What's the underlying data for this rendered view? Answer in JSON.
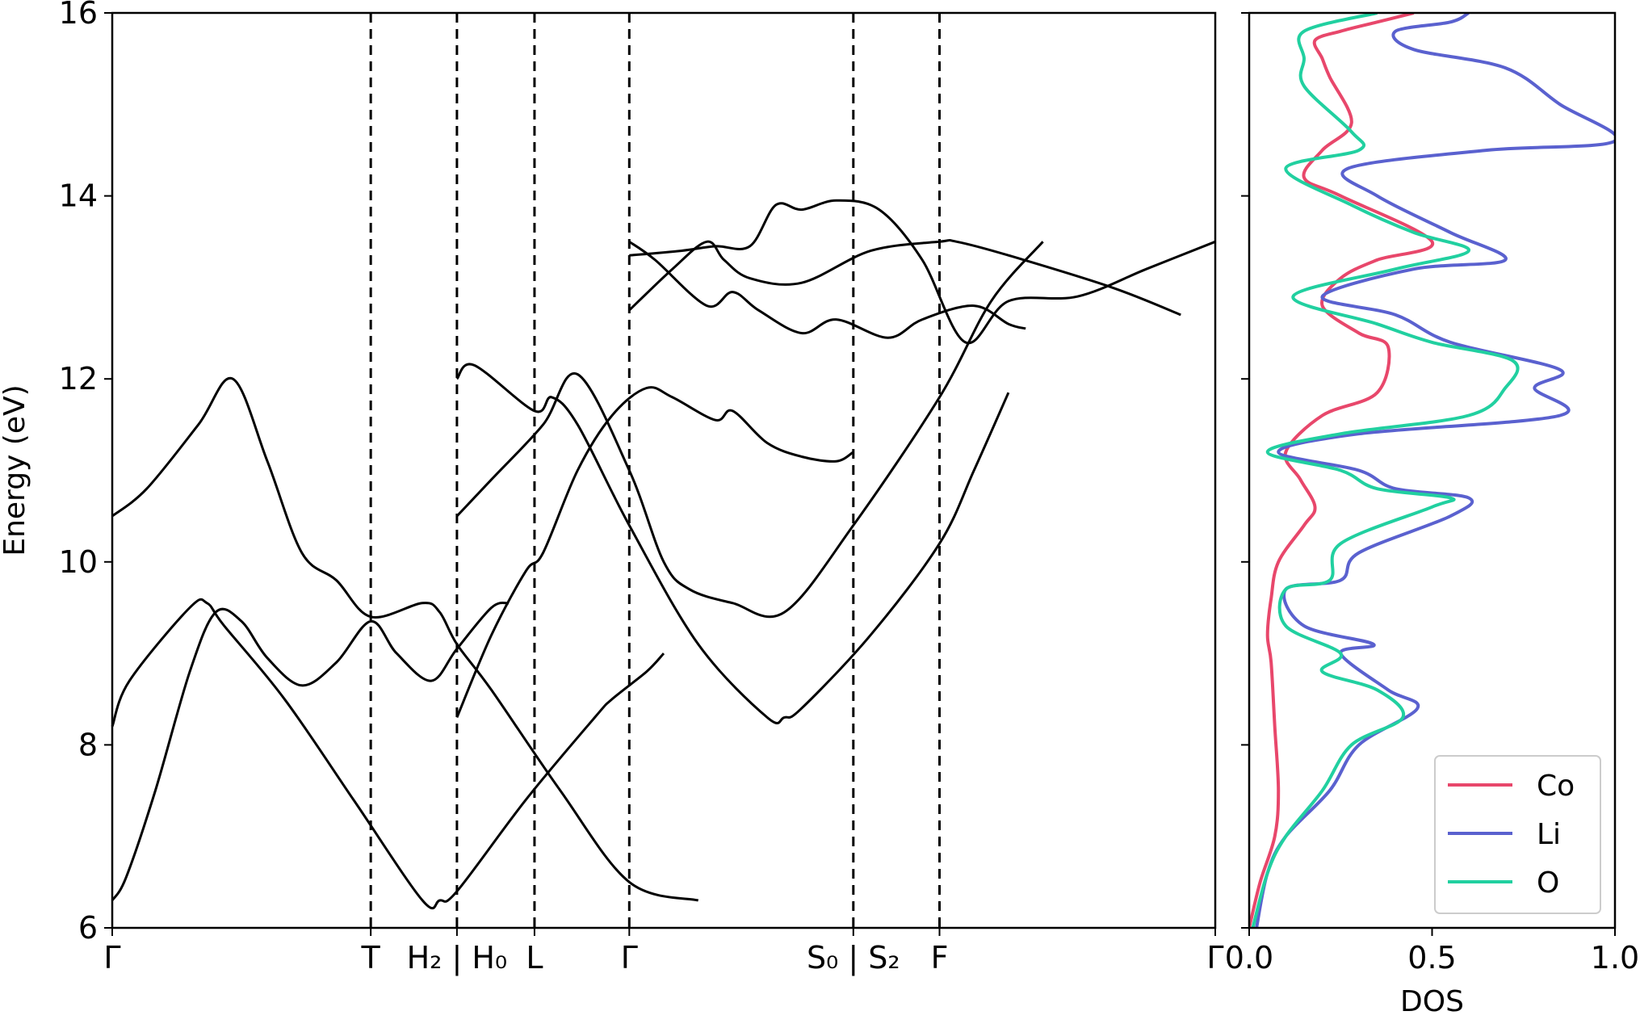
{
  "chart_data": [
    {
      "type": "line",
      "title": "",
      "xlabel": "",
      "ylabel": "Energy (eV)",
      "ylim": [
        6,
        16
      ],
      "y_ticks": [
        "6",
        "8",
        "10",
        "12",
        "14",
        "16"
      ],
      "grid": false,
      "segments": [
        {
          "x": [
            0.0,
            2.0
          ],
          "x_ticks": [
            {
              "pos": 0.0,
              "label": "Γ"
            },
            {
              "pos": 1.5,
              "label": "T"
            }
          ]
        },
        {
          "x": [
            0.0,
            1.0
          ],
          "x_ticks": [
            {
              "pos": 0.0,
              "label": "H₂ | H₀"
            },
            {
              "pos": 0.45,
              "label": "L"
            }
          ]
        },
        {
          "x": [
            0.0,
            3.4
          ],
          "x_ticks": [
            {
              "pos": 0.0,
              "label": "Γ"
            },
            {
              "pos": 1.3,
              "label": "S₀ | S₂"
            },
            {
              "pos": 1.8,
              "label": "F"
            },
            {
              "pos": 3.4,
              "label": "Γ"
            }
          ]
        }
      ],
      "dashed_vertical_lines_at_ticks": true,
      "bands": [
        [
          [
            [
              0,
              6.3
            ],
            [
              0.08,
              6.55
            ],
            [
              0.25,
              7.5
            ],
            [
              0.45,
              8.8
            ],
            [
              0.6,
              9.45
            ],
            [
              0.75,
              9.35
            ],
            [
              0.9,
              8.95
            ],
            [
              1.1,
              8.65
            ],
            [
              1.3,
              8.9
            ],
            [
              1.5,
              9.35
            ],
            [
              1.65,
              9.0
            ],
            [
              1.85,
              8.7
            ],
            [
              2.0,
              9.05
            ],
            [
              2.2,
              9.5
            ],
            [
              2.3,
              9.55
            ]
          ],
          [
            [
              0,
              8.2
            ],
            [
              0.1,
              8.7
            ],
            [
              0.45,
              9.5
            ],
            [
              0.55,
              9.55
            ],
            [
              0.65,
              9.3
            ],
            [
              1.0,
              8.5
            ],
            [
              1.4,
              7.4
            ],
            [
              1.8,
              6.3
            ],
            [
              1.9,
              6.3
            ],
            [
              2.0,
              6.4
            ],
            [
              2.4,
              7.4
            ],
            [
              2.8,
              8.3
            ],
            [
              2.9,
              8.5
            ],
            [
              3.1,
              8.8
            ],
            [
              3.2,
              9.0
            ]
          ],
          [
            [
              0,
              10.5
            ],
            [
              0.2,
              10.8
            ],
            [
              0.5,
              11.5
            ],
            [
              0.7,
              12.0
            ],
            [
              0.9,
              11.1
            ],
            [
              1.1,
              10.1
            ],
            [
              1.3,
              9.8
            ],
            [
              1.5,
              9.4
            ],
            [
              1.8,
              9.55
            ],
            [
              1.9,
              9.45
            ],
            [
              2.0,
              9.1
            ],
            [
              2.2,
              8.6
            ],
            [
              2.6,
              7.5
            ],
            [
              3.0,
              6.5
            ],
            [
              3.4,
              6.3
            ]
          ]
        ],
        [
          [
            [
              0,
              8.3
            ],
            [
              0.2,
              9.2
            ],
            [
              0.4,
              9.9
            ],
            [
              0.5,
              10.1
            ],
            [
              0.7,
              11.0
            ],
            [
              0.9,
              11.6
            ],
            [
              1.1,
              11.9
            ],
            [
              1.25,
              11.8
            ],
            [
              1.5,
              11.55
            ],
            [
              1.6,
              11.65
            ],
            [
              1.8,
              11.3
            ],
            [
              2.0,
              11.15
            ],
            [
              2.2,
              11.1
            ],
            [
              2.3,
              11.2
            ]
          ],
          [
            [
              0,
              12.0
            ],
            [
              0.1,
              12.15
            ],
            [
              0.45,
              11.65
            ],
            [
              0.55,
              11.8
            ],
            [
              0.7,
              11.5
            ],
            [
              1.0,
              10.4
            ],
            [
              1.4,
              9.1
            ],
            [
              1.8,
              8.3
            ],
            [
              1.9,
              8.3
            ],
            [
              2.0,
              8.4
            ],
            [
              2.4,
              9.2
            ],
            [
              2.8,
              10.2
            ],
            [
              3.0,
              11.0
            ],
            [
              3.2,
              11.85
            ]
          ],
          [
            [
              0,
              10.5
            ],
            [
              0.2,
              10.9
            ],
            [
              0.5,
              11.5
            ],
            [
              0.7,
              12.05
            ],
            [
              1.0,
              11.0
            ],
            [
              1.2,
              10.0
            ],
            [
              1.35,
              9.7
            ],
            [
              1.6,
              9.55
            ],
            [
              1.9,
              9.45
            ],
            [
              2.3,
              10.4
            ],
            [
              2.8,
              11.8
            ],
            [
              3.1,
              12.85
            ],
            [
              3.4,
              13.5
            ]
          ]
        ],
        [
          [
            [
              0,
              13.5
            ],
            [
              0.15,
              13.3
            ],
            [
              0.45,
              12.8
            ],
            [
              0.6,
              12.95
            ],
            [
              0.75,
              12.75
            ],
            [
              1.0,
              12.5
            ],
            [
              1.2,
              12.65
            ],
            [
              1.5,
              12.45
            ],
            [
              1.7,
              12.65
            ],
            [
              2.0,
              12.8
            ],
            [
              2.2,
              12.6
            ],
            [
              2.3,
              12.55
            ]
          ],
          [
            [
              0,
              12.75
            ],
            [
              0.25,
              13.2
            ],
            [
              0.45,
              13.5
            ],
            [
              0.55,
              13.3
            ],
            [
              0.7,
              13.1
            ],
            [
              1.0,
              13.05
            ],
            [
              1.4,
              13.4
            ],
            [
              1.8,
              13.5
            ],
            [
              1.9,
              13.5
            ],
            [
              2.2,
              13.35
            ],
            [
              2.8,
              13.0
            ],
            [
              3.2,
              12.7
            ]
          ],
          [
            [
              0,
              13.35
            ],
            [
              0.3,
              13.4
            ],
            [
              0.5,
              13.45
            ],
            [
              0.7,
              13.45
            ],
            [
              0.85,
              13.9
            ],
            [
              1.0,
              13.85
            ],
            [
              1.2,
              13.95
            ],
            [
              1.45,
              13.85
            ],
            [
              1.7,
              13.3
            ],
            [
              1.95,
              12.4
            ],
            [
              2.2,
              12.85
            ],
            [
              2.6,
              12.9
            ],
            [
              3.0,
              13.2
            ],
            [
              3.4,
              13.5
            ]
          ]
        ]
      ]
    },
    {
      "type": "line",
      "title": "",
      "xlabel": "DOS",
      "ylabel": "",
      "xlim": [
        0.0,
        1.0
      ],
      "ylim": [
        6,
        16
      ],
      "x_ticks": [
        "0.0",
        "0.5",
        "1.0"
      ],
      "grid": false,
      "legend_position": "bottom-right",
      "series": [
        {
          "name": "Co",
          "color": "#e8476b",
          "points": [
            [
              0.0,
              6.0
            ],
            [
              0.03,
              6.5
            ],
            [
              0.07,
              7.0
            ],
            [
              0.08,
              7.5
            ],
            [
              0.07,
              8.2
            ],
            [
              0.06,
              8.9
            ],
            [
              0.05,
              9.2
            ],
            [
              0.06,
              9.6
            ],
            [
              0.08,
              10.0
            ],
            [
              0.15,
              10.4
            ],
            [
              0.18,
              10.6
            ],
            [
              0.14,
              10.9
            ],
            [
              0.1,
              11.2
            ],
            [
              0.2,
              11.6
            ],
            [
              0.35,
              11.85
            ],
            [
              0.38,
              12.35
            ],
            [
              0.3,
              12.5
            ],
            [
              0.2,
              12.8
            ],
            [
              0.25,
              13.1
            ],
            [
              0.35,
              13.3
            ],
            [
              0.5,
              13.5
            ],
            [
              0.25,
              14.0
            ],
            [
              0.15,
              14.2
            ],
            [
              0.2,
              14.5
            ],
            [
              0.28,
              14.8
            ],
            [
              0.22,
              15.3
            ],
            [
              0.2,
              15.5
            ],
            [
              0.18,
              15.7
            ],
            [
              0.25,
              15.8
            ],
            [
              0.35,
              15.9
            ],
            [
              0.45,
              16.0
            ]
          ]
        },
        {
          "name": "Li",
          "color": "#5a61cf",
          "points": [
            [
              0.02,
              6.0
            ],
            [
              0.05,
              6.6
            ],
            [
              0.1,
              7.0
            ],
            [
              0.22,
              7.5
            ],
            [
              0.3,
              8.0
            ],
            [
              0.46,
              8.4
            ],
            [
              0.38,
              8.6
            ],
            [
              0.25,
              9.0
            ],
            [
              0.34,
              9.1
            ],
            [
              0.15,
              9.3
            ],
            [
              0.1,
              9.7
            ],
            [
              0.25,
              9.8
            ],
            [
              0.3,
              10.1
            ],
            [
              0.55,
              10.5
            ],
            [
              0.6,
              10.7
            ],
            [
              0.4,
              10.8
            ],
            [
              0.3,
              11.0
            ],
            [
              0.08,
              11.2
            ],
            [
              0.3,
              11.4
            ],
            [
              0.85,
              11.6
            ],
            [
              0.78,
              11.9
            ],
            [
              0.85,
              12.1
            ],
            [
              0.55,
              12.4
            ],
            [
              0.4,
              12.7
            ],
            [
              0.2,
              12.9
            ],
            [
              0.45,
              13.2
            ],
            [
              0.7,
              13.3
            ],
            [
              0.55,
              13.6
            ],
            [
              0.35,
              14.0
            ],
            [
              0.27,
              14.3
            ],
            [
              0.65,
              14.5
            ],
            [
              1.0,
              14.6
            ],
            [
              0.85,
              15.0
            ],
            [
              0.7,
              15.4
            ],
            [
              0.45,
              15.6
            ],
            [
              0.4,
              15.8
            ],
            [
              0.55,
              15.9
            ],
            [
              0.6,
              16.0
            ]
          ]
        },
        {
          "name": "O",
          "color": "#21d0a0",
          "points": [
            [
              0.01,
              6.0
            ],
            [
              0.05,
              6.6
            ],
            [
              0.1,
              7.0
            ],
            [
              0.2,
              7.5
            ],
            [
              0.28,
              8.0
            ],
            [
              0.42,
              8.3
            ],
            [
              0.35,
              8.6
            ],
            [
              0.2,
              8.8
            ],
            [
              0.25,
              9.0
            ],
            [
              0.1,
              9.3
            ],
            [
              0.1,
              9.7
            ],
            [
              0.22,
              9.8
            ],
            [
              0.25,
              10.2
            ],
            [
              0.5,
              10.6
            ],
            [
              0.55,
              10.7
            ],
            [
              0.35,
              10.8
            ],
            [
              0.25,
              11.0
            ],
            [
              0.05,
              11.2
            ],
            [
              0.25,
              11.4
            ],
            [
              0.6,
              11.6
            ],
            [
              0.7,
              11.9
            ],
            [
              0.72,
              12.2
            ],
            [
              0.5,
              12.4
            ],
            [
              0.35,
              12.6
            ],
            [
              0.12,
              12.9
            ],
            [
              0.4,
              13.2
            ],
            [
              0.6,
              13.4
            ],
            [
              0.45,
              13.6
            ],
            [
              0.28,
              13.9
            ],
            [
              0.1,
              14.3
            ],
            [
              0.3,
              14.5
            ],
            [
              0.28,
              14.7
            ],
            [
              0.15,
              15.2
            ],
            [
              0.15,
              15.5
            ],
            [
              0.15,
              15.8
            ],
            [
              0.35,
              16.0
            ]
          ]
        }
      ]
    }
  ]
}
